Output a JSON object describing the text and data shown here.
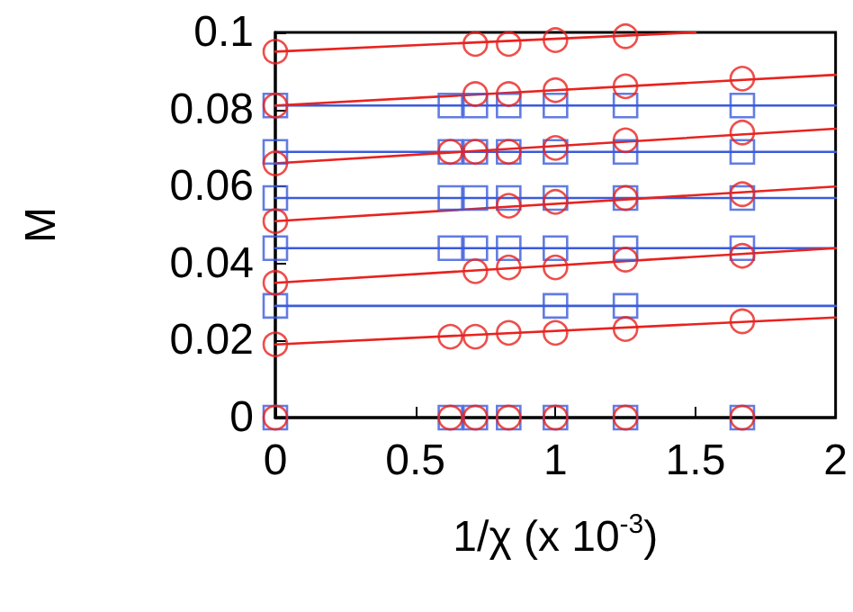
{
  "chart_data": {
    "type": "scatter",
    "xlabel": "1/χ (x 10$^{-3}$)",
    "ylabel": "M",
    "xlim": [
      0,
      2
    ],
    "xticks": [
      0,
      0.5,
      1,
      1.5,
      2
    ],
    "ylim": [
      0,
      0.1
    ],
    "yticks": [
      0,
      0.02,
      0.04,
      0.06,
      0.08,
      0.1
    ],
    "grid": false,
    "series": [
      {
        "marker": "square",
        "color": "#3b5bdb",
        "x": [
          0,
          0.625,
          0.714,
          0.833,
          1,
          1.25,
          1.667
        ],
        "values": [
          0.081,
          0.081,
          0.081,
          0.081,
          0.081,
          0.081,
          0.081
        ]
      },
      {
        "marker": "square",
        "color": "#3b5bdb",
        "x": [
          0,
          0.625,
          0.714,
          0.833,
          1,
          1.25,
          1.667
        ],
        "values": [
          0.069,
          0.069,
          0.069,
          0.069,
          0.069,
          0.069,
          0.069
        ]
      },
      {
        "marker": "square",
        "color": "#3b5bdb",
        "x": [
          0,
          0.625,
          0.714,
          0.833,
          1,
          1.25,
          1.667
        ],
        "values": [
          0.057,
          0.057,
          0.057,
          0.057,
          0.057,
          0.057,
          0.057
        ]
      },
      {
        "marker": "square",
        "color": "#3b5bdb",
        "x": [
          0,
          0.625,
          0.714,
          0.833,
          1,
          1.25,
          1.667
        ],
        "values": [
          0.044,
          0.044,
          0.044,
          0.044,
          0.044,
          0.044,
          0.044
        ]
      },
      {
        "marker": "square",
        "color": "#3b5bdb",
        "x": [
          0,
          1,
          1.25
        ],
        "values": [
          0.029,
          0.029,
          0.029
        ]
      },
      {
        "marker": "square",
        "color": "#3b5bdb",
        "x": [
          0,
          0.625,
          0.714,
          0.833,
          1,
          1.25,
          1.667
        ],
        "values": [
          0,
          0,
          0,
          0,
          0,
          0,
          0
        ]
      },
      {
        "type": "line",
        "marker": "none",
        "color": "#3b5bdb",
        "x": [
          0,
          2
        ],
        "values": [
          0.081,
          0.081
        ]
      },
      {
        "type": "line",
        "marker": "none",
        "color": "#3b5bdb",
        "x": [
          0,
          2
        ],
        "values": [
          0.069,
          0.069
        ]
      },
      {
        "type": "line",
        "marker": "none",
        "color": "#3b5bdb",
        "x": [
          0,
          2
        ],
        "values": [
          0.057,
          0.057
        ]
      },
      {
        "type": "line",
        "marker": "none",
        "color": "#3b5bdb",
        "x": [
          0,
          2
        ],
        "values": [
          0.044,
          0.044
        ]
      },
      {
        "type": "line",
        "marker": "none",
        "color": "#3b5bdb",
        "x": [
          0,
          2
        ],
        "values": [
          0.029,
          0.029
        ]
      },
      {
        "marker": "circle",
        "color": "#e8231f",
        "x": [
          0,
          0.714,
          0.833,
          1,
          1.25
        ],
        "values": [
          0.095,
          0.097,
          0.097,
          0.098,
          0.099
        ]
      },
      {
        "marker": "circle",
        "color": "#e8231f",
        "x": [
          0,
          0.714,
          0.833,
          1,
          1.25,
          1.667
        ],
        "values": [
          0.081,
          0.084,
          0.084,
          0.085,
          0.086,
          0.088
        ]
      },
      {
        "marker": "circle",
        "color": "#e8231f",
        "x": [
          0,
          0.625,
          0.714,
          0.833,
          1,
          1.25,
          1.667
        ],
        "values": [
          0.066,
          0.069,
          0.069,
          0.069,
          0.07,
          0.072,
          0.074
        ]
      },
      {
        "marker": "circle",
        "color": "#e8231f",
        "x": [
          0,
          0.833,
          1,
          1.25,
          1.667
        ],
        "values": [
          0.051,
          0.055,
          0.056,
          0.057,
          0.058
        ]
      },
      {
        "marker": "circle",
        "color": "#e8231f",
        "x": [
          0,
          0.714,
          0.833,
          1,
          1.25,
          1.667
        ],
        "values": [
          0.035,
          0.038,
          0.039,
          0.039,
          0.041,
          0.042
        ]
      },
      {
        "marker": "circle",
        "color": "#e8231f",
        "x": [
          0,
          0.625,
          0.714,
          0.833,
          1,
          1.25,
          1.667
        ],
        "values": [
          0.019,
          0.021,
          0.021,
          0.022,
          0.022,
          0.023,
          0.025
        ]
      },
      {
        "marker": "circle",
        "color": "#e8231f",
        "x": [
          0,
          0.625,
          0.714,
          0.833,
          1,
          1.25,
          1.667
        ],
        "values": [
          0,
          0,
          0,
          0,
          0,
          0,
          0
        ]
      },
      {
        "type": "line",
        "marker": "none",
        "color": "#e8231f",
        "x": [
          0,
          1.5
        ],
        "values": [
          0.095,
          0.1
        ]
      },
      {
        "type": "line",
        "marker": "none",
        "color": "#e8231f",
        "x": [
          0,
          2
        ],
        "values": [
          0.081,
          0.089
        ]
      },
      {
        "type": "line",
        "marker": "none",
        "color": "#e8231f",
        "x": [
          0,
          2
        ],
        "values": [
          0.066,
          0.075
        ]
      },
      {
        "type": "line",
        "marker": "none",
        "color": "#e8231f",
        "x": [
          0,
          2
        ],
        "values": [
          0.051,
          0.06
        ]
      },
      {
        "type": "line",
        "marker": "none",
        "color": "#e8231f",
        "x": [
          0,
          2
        ],
        "values": [
          0.035,
          0.044
        ]
      },
      {
        "type": "line",
        "marker": "none",
        "color": "#e8231f",
        "x": [
          0,
          2
        ],
        "values": [
          0.019,
          0.026
        ]
      }
    ]
  }
}
